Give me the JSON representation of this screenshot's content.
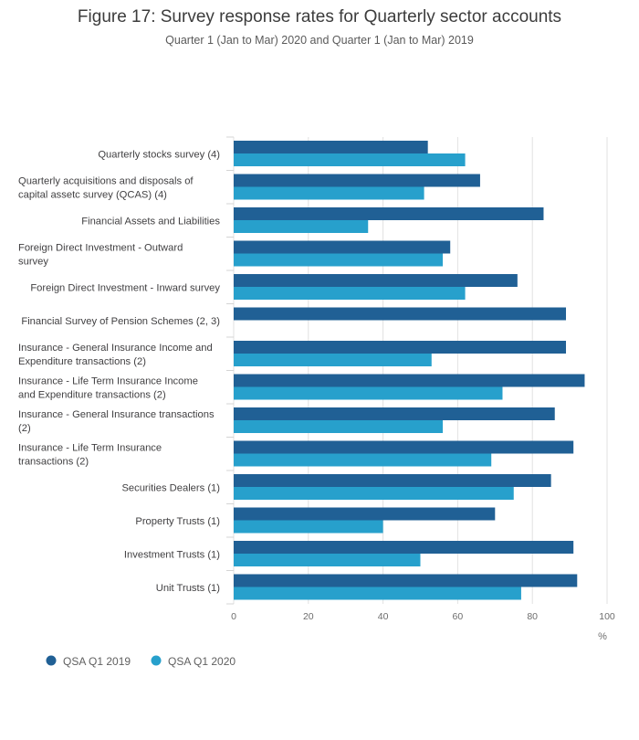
{
  "chart_data": {
    "type": "bar",
    "orientation": "horizontal",
    "title": "Figure 17: Survey response rates for Quarterly sector accounts",
    "subtitle": "Quarter 1 (Jan to Mar) 2020 and Quarter 1 (Jan to Mar) 2019",
    "xlabel": "%",
    "xlim": [
      0,
      100
    ],
    "xticks": [
      0,
      20,
      40,
      60,
      80,
      100
    ],
    "grid": true,
    "legend_position": "bottom-left",
    "categories": [
      [
        "Quarterly stocks survey (4)"
      ],
      [
        "Quarterly acquisitions and disposals of",
        "capital assetc survey (QCAS) (4)"
      ],
      [
        "Financial Assets and Liabilities"
      ],
      [
        "Foreign Direct Investment - Outward",
        "survey"
      ],
      [
        "Foreign Direct Investment - Inward survey"
      ],
      [
        "Financial Survey of Pension Schemes (2, 3)"
      ],
      [
        "Insurance - General Insurance Income and",
        "Expenditure transactions (2)"
      ],
      [
        "Insurance - Life Term Insurance Income",
        "and Expenditure transactions (2)"
      ],
      [
        "Insurance - General Insurance transactions",
        "(2)"
      ],
      [
        "Insurance - Life Term Insurance",
        "transactions (2)"
      ],
      [
        "Securities Dealers (1)"
      ],
      [
        "Property Trusts (1)"
      ],
      [
        "Investment Trusts (1)"
      ],
      [
        "Unit Trusts (1)"
      ]
    ],
    "series": [
      {
        "name": "QSA Q1 2019",
        "color": "#206095",
        "values": [
          52,
          66,
          83,
          58,
          76,
          89,
          89,
          94,
          86,
          91,
          85,
          70,
          91,
          92
        ]
      },
      {
        "name": "QSA Q1 2020",
        "color": "#27a0cc",
        "values": [
          62,
          51,
          36,
          56,
          62,
          null,
          53,
          72,
          56,
          69,
          75,
          40,
          50,
          77
        ]
      }
    ]
  }
}
